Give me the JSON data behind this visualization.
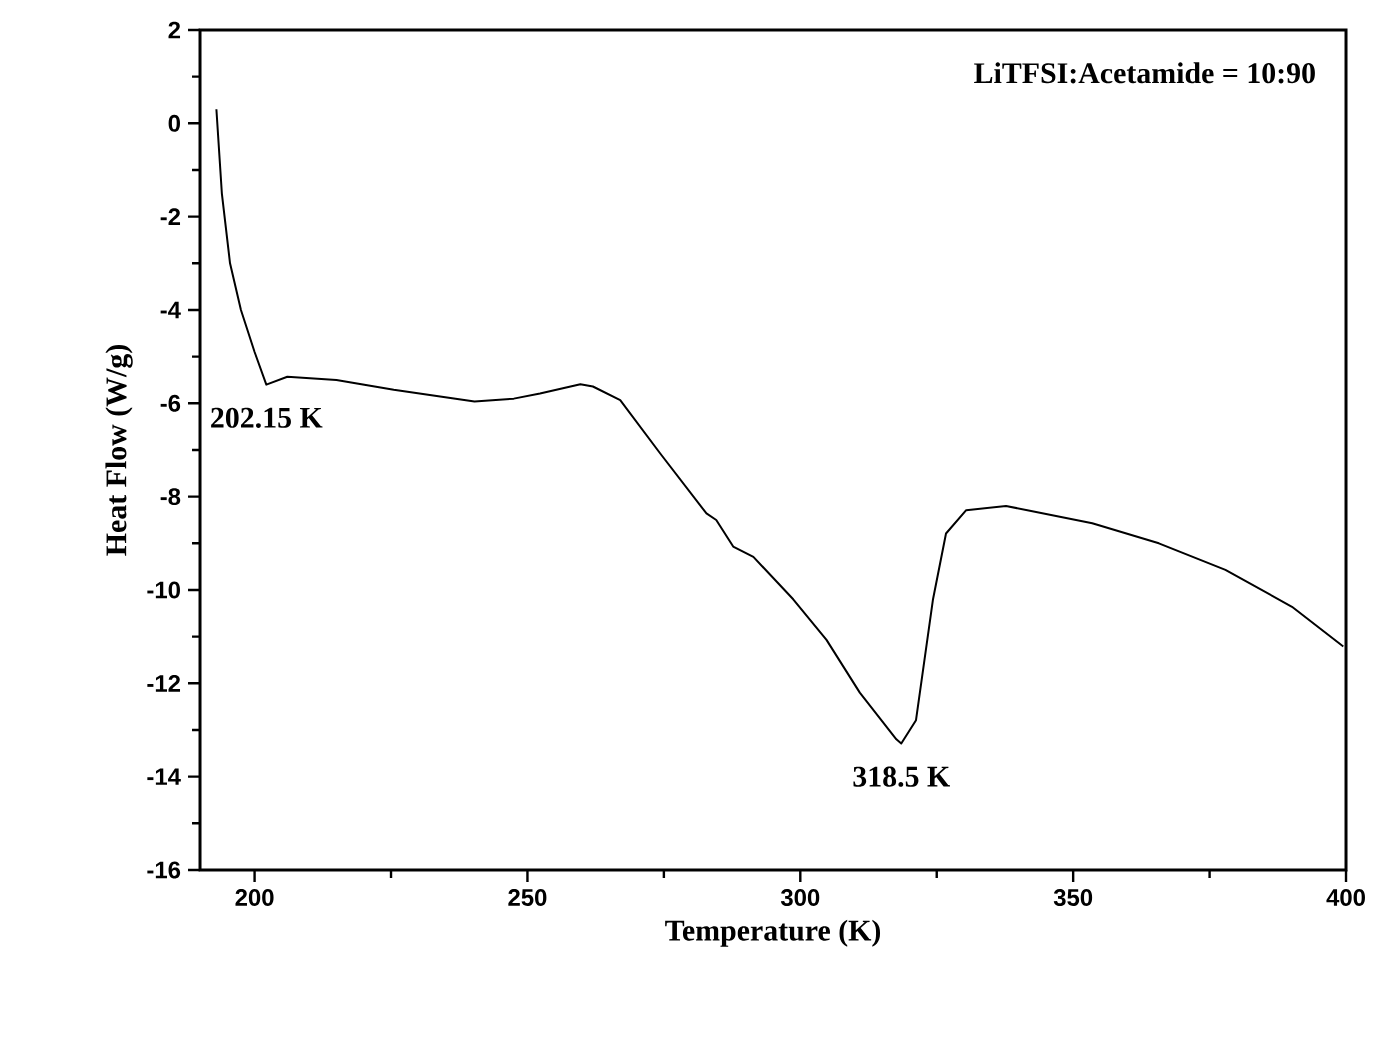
{
  "chart_data": {
    "type": "line",
    "xlabel": "Temperature  (K)",
    "ylabel": "Heat Flow  (W/g)",
    "x": [
      193,
      194,
      195.5,
      197.5,
      200,
      202.15,
      206,
      215,
      225.5,
      240.3,
      247.5,
      252.3,
      259.7,
      262,
      267,
      274.3,
      282.8,
      284.6,
      287.7,
      291.4,
      298.7,
      304.8,
      310.9,
      317.6,
      318.5,
      321.2,
      324.3,
      326.7,
      330.4,
      337.7,
      353.5,
      365.7,
      377.9,
      390.1,
      399.5
    ],
    "series": [
      {
        "color": "#000000",
        "values": [
          0.3,
          -1.5,
          -3,
          -4,
          -4.9,
          -5.6,
          -5.43,
          -5.5,
          -5.71,
          -5.96,
          -5.9,
          -5.79,
          -5.59,
          -5.64,
          -5.93,
          -7.07,
          -8.36,
          -8.5,
          -9.07,
          -9.29,
          -10.2,
          -11.07,
          -12.2,
          -13.2,
          -13.29,
          -12.79,
          -10.21,
          -8.79,
          -8.29,
          -8.2,
          -8.57,
          -9.0,
          -9.57,
          -10.36,
          -11.21
        ]
      }
    ],
    "xlim": [
      190,
      400
    ],
    "xticks": [
      200,
      250,
      300,
      350,
      400
    ],
    "ylim": [
      -16,
      2
    ],
    "yticks": [
      -16,
      -14,
      -12,
      -10,
      -8,
      -6,
      -4,
      -2,
      0,
      2
    ],
    "annotations": [
      {
        "text": "202.15 K",
        "x": 202.15,
        "y": -5.6
      },
      {
        "text": "318.5 K",
        "x": 318.5,
        "y": -13.29
      },
      "LiTFSI:Acetamide = 10:90"
    ],
    "grid": false,
    "marker": "none",
    "line_style": "solid"
  }
}
